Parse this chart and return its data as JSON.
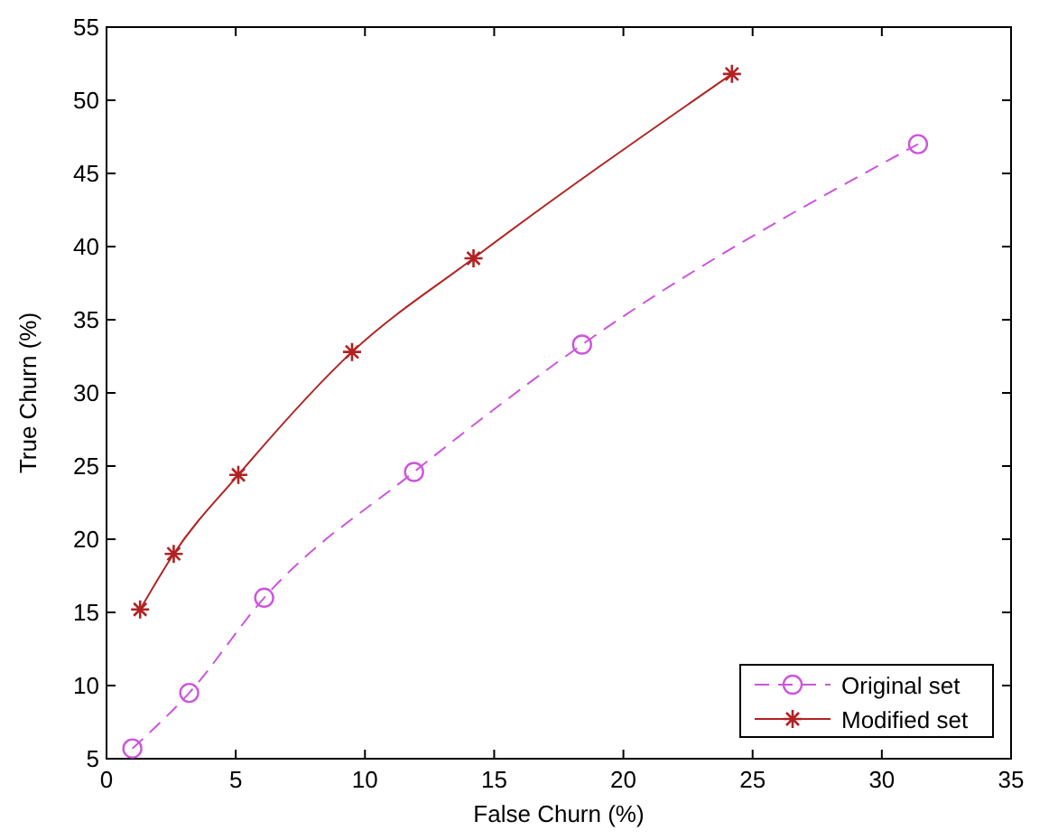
{
  "chart_data": {
    "type": "line",
    "xlabel": "False Churn (%)",
    "ylabel": "True Churn (%)",
    "xlim": [
      0,
      35
    ],
    "xticks": [
      0,
      5,
      10,
      15,
      20,
      25,
      30,
      35
    ],
    "ylim": [
      5,
      55
    ],
    "yticks": [
      5,
      10,
      15,
      20,
      25,
      30,
      35,
      40,
      45,
      50,
      55
    ],
    "legend": "bottom right",
    "grid": false,
    "series": [
      {
        "name": "Original set",
        "color": "#cc55dd",
        "x": [
          1.0,
          3.2,
          6.1,
          11.9,
          18.4,
          31.4
        ],
        "values": [
          5.7,
          9.5,
          16.0,
          24.6,
          33.3,
          47.0
        ],
        "marker": "circle",
        "line_style": "dashed"
      },
      {
        "name": "Modified set",
        "color": "#b22222",
        "x": [
          1.3,
          2.6,
          5.1,
          9.5,
          14.2,
          24.2
        ],
        "values": [
          15.2,
          19.0,
          24.4,
          32.8,
          39.2,
          51.8
        ],
        "marker": "cross",
        "line_style": "solid"
      }
    ]
  }
}
